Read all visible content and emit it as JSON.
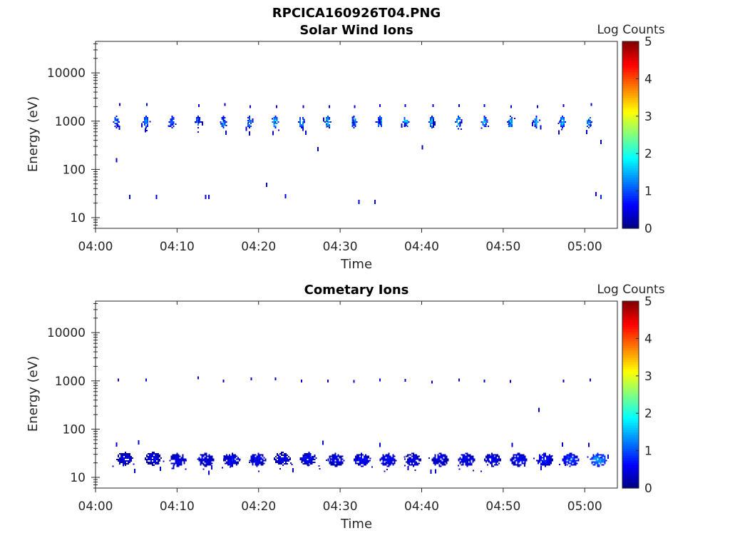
{
  "figure": {
    "title": "RPCICA160926T04.PNG"
  },
  "chart_data": [
    {
      "type": "heatmap",
      "title": "Solar Wind Ions",
      "xlabel": "Time",
      "ylabel": "Energy (eV)",
      "x_range": [
        "04:00",
        "05:04"
      ],
      "y_range": [
        6,
        45000
      ],
      "y_scale": "log",
      "x_ticks": [
        "04:00",
        "04:10",
        "04:20",
        "04:30",
        "04:40",
        "04:50",
        "05:00"
      ],
      "y_ticks": [
        "10",
        "100",
        "1000",
        "10000"
      ],
      "colorbar": {
        "label": "Log Counts",
        "range": [
          0,
          5
        ],
        "ticks": [
          "0",
          "1",
          "2",
          "3",
          "4",
          "5"
        ],
        "colormap": "jet"
      },
      "clusters": [
        {
          "t": "04:02.5",
          "e": 1000,
          "v": 1.2
        },
        {
          "t": "04:06.1",
          "e": 1000,
          "v": 1.4
        },
        {
          "t": "04:09.3",
          "e": 1000,
          "v": 1.1
        },
        {
          "t": "04:12.5",
          "e": 1000,
          "v": 1.3
        },
        {
          "t": "04:15.6",
          "e": 1000,
          "v": 1.4
        },
        {
          "t": "04:18.8",
          "e": 1000,
          "v": 1.3
        },
        {
          "t": "04:22.0",
          "e": 1000,
          "v": 1.7
        },
        {
          "t": "04:25.2",
          "e": 1000,
          "v": 1.6
        },
        {
          "t": "04:28.4",
          "e": 1000,
          "v": 1.7
        },
        {
          "t": "04:31.6",
          "e": 1000,
          "v": 1.6
        },
        {
          "t": "04:34.8",
          "e": 1000,
          "v": 1.7
        },
        {
          "t": "04:38.0",
          "e": 1000,
          "v": 1.7
        },
        {
          "t": "04:41.2",
          "e": 1000,
          "v": 1.6
        },
        {
          "t": "04:44.4",
          "e": 1000,
          "v": 1.7
        },
        {
          "t": "04:47.6",
          "e": 1000,
          "v": 1.6
        },
        {
          "t": "04:50.8",
          "e": 1000,
          "v": 1.6
        },
        {
          "t": "04:54.0",
          "e": 1000,
          "v": 1.5
        },
        {
          "t": "04:57.2",
          "e": 1000,
          "v": 1.5
        },
        {
          "t": "05:00.4",
          "e": 1000,
          "v": 1.5
        }
      ],
      "upper_dots": [
        {
          "t": "04:02.9",
          "e": 2200
        },
        {
          "t": "04:06.2",
          "e": 2200
        },
        {
          "t": "04:12.6",
          "e": 2100
        },
        {
          "t": "04:15.8",
          "e": 2200
        },
        {
          "t": "04:18.9",
          "e": 2000
        },
        {
          "t": "04:22.1",
          "e": 2000
        },
        {
          "t": "04:25.4",
          "e": 2000
        },
        {
          "t": "04:28.6",
          "e": 2000
        },
        {
          "t": "04:31.7",
          "e": 2000
        },
        {
          "t": "04:34.8",
          "e": 2100
        },
        {
          "t": "04:37.9",
          "e": 2100
        },
        {
          "t": "04:41.3",
          "e": 2100
        },
        {
          "t": "04:44.5",
          "e": 2100
        },
        {
          "t": "04:47.6",
          "e": 2100
        },
        {
          "t": "04:50.9",
          "e": 2000
        },
        {
          "t": "04:54.1",
          "e": 2000
        },
        {
          "t": "04:57.3",
          "e": 2100
        },
        {
          "t": "05:00.7",
          "e": 2200
        }
      ],
      "sparse": [
        {
          "t": "04:02.5",
          "e": 155,
          "v": 0.3
        },
        {
          "t": "04:04.1",
          "e": 27,
          "v": 0.6
        },
        {
          "t": "04:07.4",
          "e": 27,
          "v": 0.5
        },
        {
          "t": "04:13.4",
          "e": 27,
          "v": 0.5
        },
        {
          "t": "04:13.8",
          "e": 27,
          "v": 0.5
        },
        {
          "t": "04:20.9",
          "e": 48,
          "v": 0.4
        },
        {
          "t": "04:23.2",
          "e": 28,
          "v": 0.5
        },
        {
          "t": "04:27.2",
          "e": 265,
          "v": 0.3
        },
        {
          "t": "04:32.2",
          "e": 21,
          "v": 0.5
        },
        {
          "t": "04:34.2",
          "e": 21,
          "v": 0.5
        },
        {
          "t": "04:40.0",
          "e": 285,
          "v": 0.3
        },
        {
          "t": "05:01.3",
          "e": 31,
          "v": 0.6
        },
        {
          "t": "05:01.9",
          "e": 27,
          "v": 0.8
        },
        {
          "t": "05:01.9",
          "e": 370,
          "v": 0.3
        }
      ]
    },
    {
      "type": "heatmap",
      "title": "Cometary Ions",
      "xlabel": "Time",
      "ylabel": "Energy (eV)",
      "x_range": [
        "04:00",
        "05:04"
      ],
      "y_range": [
        6,
        45000
      ],
      "y_scale": "log",
      "x_ticks": [
        "04:00",
        "04:10",
        "04:20",
        "04:30",
        "04:40",
        "04:50",
        "05:00"
      ],
      "y_ticks": [
        "10",
        "100",
        "1000",
        "10000"
      ],
      "colorbar": {
        "label": "Log Counts",
        "range": [
          0,
          5
        ],
        "ticks": [
          "0",
          "1",
          "2",
          "3",
          "4",
          "5"
        ],
        "colormap": "jet"
      },
      "clusters": [
        {
          "t": "04:03.5",
          "e": 25,
          "v": 0.5
        },
        {
          "t": "04:07.0",
          "e": 25,
          "v": 0.5
        },
        {
          "t": "04:10.0",
          "e": 24,
          "v": 0.5
        },
        {
          "t": "04:13.4",
          "e": 24,
          "v": 0.5
        },
        {
          "t": "04:16.6",
          "e": 24,
          "v": 0.6
        },
        {
          "t": "04:19.8",
          "e": 24,
          "v": 0.6
        },
        {
          "t": "04:22.8",
          "e": 25,
          "v": 0.5
        },
        {
          "t": "04:26.0",
          "e": 25,
          "v": 0.6
        },
        {
          "t": "04:29.4",
          "e": 24,
          "v": 0.5
        },
        {
          "t": "04:32.6",
          "e": 24,
          "v": 0.6
        },
        {
          "t": "04:35.8",
          "e": 24,
          "v": 0.6
        },
        {
          "t": "04:38.8",
          "e": 24,
          "v": 0.5
        },
        {
          "t": "04:42.2",
          "e": 24,
          "v": 0.5
        },
        {
          "t": "04:45.4",
          "e": 24,
          "v": 0.6
        },
        {
          "t": "04:48.6",
          "e": 24,
          "v": 0.6
        },
        {
          "t": "04:51.8",
          "e": 24,
          "v": 0.6
        },
        {
          "t": "04:55.0",
          "e": 24,
          "v": 0.7
        },
        {
          "t": "04:58.2",
          "e": 24,
          "v": 0.9
        },
        {
          "t": "05:01.6",
          "e": 24,
          "v": 1.4
        }
      ],
      "upper_dots": [
        {
          "t": "04:02.7",
          "e": 1050
        },
        {
          "t": "04:06.1",
          "e": 1050
        },
        {
          "t": "04:12.5",
          "e": 1150
        },
        {
          "t": "04:15.6",
          "e": 1000
        },
        {
          "t": "04:19.0",
          "e": 1100
        },
        {
          "t": "04:22.0",
          "e": 1100
        },
        {
          "t": "04:25.2",
          "e": 1000
        },
        {
          "t": "04:28.4",
          "e": 1000
        },
        {
          "t": "04:31.6",
          "e": 970
        },
        {
          "t": "04:34.8",
          "e": 1050
        },
        {
          "t": "04:37.9",
          "e": 1020
        },
        {
          "t": "04:41.2",
          "e": 950
        },
        {
          "t": "04:44.5",
          "e": 1050
        },
        {
          "t": "04:47.6",
          "e": 1000
        },
        {
          "t": "04:50.8",
          "e": 980
        },
        {
          "t": "04:57.3",
          "e": 1000
        },
        {
          "t": "05:00.6",
          "e": 1050
        }
      ],
      "sparse": [
        {
          "t": "04:02.5",
          "e": 48,
          "v": 0.4
        },
        {
          "t": "04:05.2",
          "e": 53,
          "v": 0.4
        },
        {
          "t": "04:27.8",
          "e": 52,
          "v": 0.4
        },
        {
          "t": "04:34.8",
          "e": 47,
          "v": 0.4
        },
        {
          "t": "04:51.0",
          "e": 47,
          "v": 0.4
        },
        {
          "t": "04:54.3",
          "e": 250,
          "v": 0.3
        },
        {
          "t": "04:57.2",
          "e": 48,
          "v": 0.4
        },
        {
          "t": "05:00.4",
          "e": 47,
          "v": 0.4
        }
      ]
    }
  ]
}
